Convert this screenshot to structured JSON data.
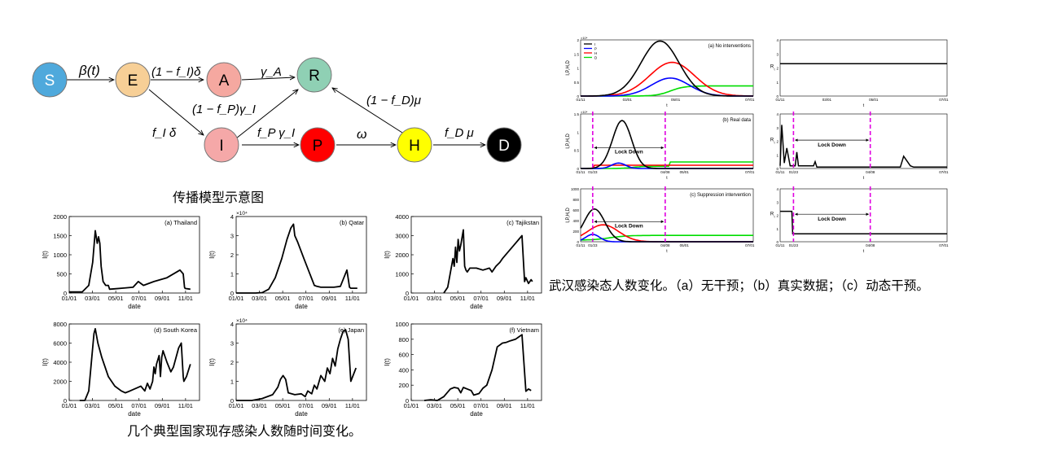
{
  "diagram": {
    "nodes": [
      {
        "id": "S",
        "label": "S",
        "color": "#4fa9dc",
        "text_color": "#ffffff"
      },
      {
        "id": "E",
        "label": "E",
        "color": "#f7cf96",
        "text_color": "#000000"
      },
      {
        "id": "A",
        "label": "A",
        "color": "#f5a8a0",
        "text_color": "#000000"
      },
      {
        "id": "R",
        "label": "R",
        "color": "#8fd0b4",
        "text_color": "#000000"
      },
      {
        "id": "I",
        "label": "I",
        "color": "#f5a8a8",
        "text_color": "#000000"
      },
      {
        "id": "P",
        "label": "P",
        "color": "#ff0000",
        "text_color": "#000000"
      },
      {
        "id": "H",
        "label": "H",
        "color": "#ffff00",
        "text_color": "#000000"
      },
      {
        "id": "D",
        "label": "D",
        "color": "#000000",
        "text_color": "#ffffff"
      }
    ],
    "edge_labels": {
      "s_e": "β(t)",
      "e_a": "(1 − f_I)δ",
      "a_r": "γ_A",
      "i_r": "(1 − f_P)γ_I",
      "e_i": "f_I δ",
      "i_p": "f_P γ_I",
      "p_h": "ω",
      "h_r": "(1 − f_D)μ",
      "h_d": "f_D μ"
    }
  },
  "captions": {
    "diagram": "传播模型示意图",
    "countries": "几个典型国家现存感染人数随时间变化。",
    "wuhan": "武汉感染态人数变化。（a）无干预；（b）真实数据；（c）动态干预。"
  },
  "country_axis_labels": {
    "x": "date",
    "y": "I(t)"
  },
  "wuhan_labels": {
    "y_left": "I,P,H,D",
    "y_right": "R",
    "y_right_sub": "t",
    "x": "t",
    "lockdown": "Lock Down",
    "legend": [
      "I",
      "P",
      "H",
      "D"
    ],
    "legend_colors": [
      "#000000",
      "#0000ff",
      "#ff0000",
      "#00dd00"
    ],
    "sci_top": "×10⁴",
    "sci_mid": "×10⁴"
  },
  "chart_data": [
    {
      "type": "line",
      "title": "(a) Thailand",
      "x_ticks": [
        "01/01",
        "03/01",
        "05/01",
        "07/01",
        "09/01",
        "11/01"
      ],
      "ylim": [
        0,
        2000
      ],
      "y_ticks": [
        "0",
        "500",
        "1000",
        "1500",
        "2000"
      ],
      "y_scale_label": "",
      "x": [
        0,
        0.07,
        0.1,
        0.15,
        0.18,
        0.2,
        0.215,
        0.225,
        0.235,
        0.245,
        0.26,
        0.28,
        0.3,
        0.31,
        0.35,
        0.42,
        0.49,
        0.53,
        0.57,
        0.65,
        0.75,
        0.85,
        0.875,
        0.885,
        0.89,
        0.93
      ],
      "y": [
        30,
        30,
        30,
        200,
        800,
        1630,
        1300,
        1470,
        1300,
        700,
        300,
        200,
        200,
        100,
        110,
        130,
        150,
        300,
        200,
        300,
        400,
        600,
        500,
        150,
        120,
        100
      ]
    },
    {
      "type": "line",
      "title": "(b) Qatar",
      "x_ticks": [
        "01/01",
        "03/01",
        "05/01",
        "07/01",
        "09/01",
        "11/01"
      ],
      "ylim": [
        0,
        40000
      ],
      "y_ticks": [
        "0",
        "1",
        "2",
        "3",
        "4"
      ],
      "y_scale_label": "×10⁴",
      "x": [
        0,
        0.15,
        0.2,
        0.25,
        0.3,
        0.35,
        0.39,
        0.42,
        0.44,
        0.45,
        0.47,
        0.52,
        0.6,
        0.62,
        0.65,
        0.75,
        0.8,
        0.85,
        0.87,
        0.88,
        0.93
      ],
      "y": [
        0,
        0,
        200,
        2000,
        8000,
        18000,
        28000,
        34000,
        36000,
        30000,
        27000,
        18000,
        4000,
        3500,
        3000,
        3000,
        3500,
        12000,
        3000,
        2500,
        2500
      ]
    },
    {
      "type": "line",
      "title": "(c) Tajikstan",
      "x_ticks": [
        "01/01",
        "03/01",
        "05/01",
        "07/01",
        "09/01",
        "11/01"
      ],
      "ylim": [
        0,
        4000
      ],
      "y_ticks": [
        "0",
        "1000",
        "2000",
        "3000",
        "4000"
      ],
      "y_scale_label": "",
      "x": [
        0.25,
        0.28,
        0.32,
        0.33,
        0.34,
        0.35,
        0.36,
        0.37,
        0.38,
        0.4,
        0.41,
        0.42,
        0.43,
        0.45,
        0.5,
        0.55,
        0.6,
        0.62,
        0.65,
        0.68,
        0.7,
        0.75,
        0.8,
        0.85,
        0.87,
        0.88,
        0.9,
        0.92,
        0.93
      ],
      "y": [
        0,
        300,
        1800,
        1400,
        2400,
        1600,
        2800,
        2200,
        2500,
        3300,
        1400,
        1200,
        1100,
        1300,
        1300,
        1200,
        1300,
        1100,
        1400,
        1600,
        1800,
        2200,
        2600,
        3000,
        600,
        800,
        500,
        700,
        600
      ]
    },
    {
      "type": "line",
      "title": "(d) South Korea",
      "x_ticks": [
        "01/01",
        "03/01",
        "05/01",
        "07/01",
        "09/01",
        "11/01"
      ],
      "ylim": [
        0,
        8000
      ],
      "y_ticks": [
        "0",
        "2000",
        "4000",
        "6000",
        "8000"
      ],
      "y_scale_label": "",
      "x": [
        0.08,
        0.12,
        0.15,
        0.17,
        0.19,
        0.2,
        0.22,
        0.25,
        0.3,
        0.35,
        0.4,
        0.43,
        0.45,
        0.5,
        0.55,
        0.58,
        0.6,
        0.62,
        0.64,
        0.65,
        0.66,
        0.67,
        0.69,
        0.7,
        0.71,
        0.72,
        0.75,
        0.78,
        0.8,
        0.82,
        0.84,
        0.86,
        0.875,
        0.88,
        0.9,
        0.93
      ],
      "y": [
        0,
        0,
        1000,
        4000,
        7000,
        7500,
        6000,
        4500,
        2500,
        1500,
        1000,
        800,
        900,
        1200,
        1500,
        1000,
        1800,
        1200,
        2000,
        3500,
        2800,
        3800,
        4700,
        2500,
        4500,
        5200,
        4000,
        3000,
        3500,
        4500,
        5500,
        6000,
        2500,
        2000,
        2500,
        3800
      ]
    },
    {
      "type": "line",
      "title": "(e) Japan",
      "x_ticks": [
        "01/01",
        "03/01",
        "05/01",
        "07/01",
        "09/01",
        "11/01"
      ],
      "ylim": [
        0,
        40000
      ],
      "y_ticks": [
        "0",
        "1",
        "2",
        "3",
        "4"
      ],
      "y_scale_label": "×10⁴",
      "x": [
        0,
        0.12,
        0.2,
        0.28,
        0.32,
        0.34,
        0.36,
        0.38,
        0.4,
        0.45,
        0.5,
        0.53,
        0.55,
        0.58,
        0.6,
        0.62,
        0.65,
        0.68,
        0.7,
        0.72,
        0.74,
        0.76,
        0.78,
        0.8,
        0.82,
        0.84,
        0.86,
        0.88,
        0.92
      ],
      "y": [
        0,
        0,
        1000,
        3000,
        7000,
        11000,
        13000,
        11000,
        4000,
        3000,
        3500,
        2000,
        5000,
        3500,
        8000,
        6000,
        13000,
        10000,
        17000,
        14000,
        22000,
        18000,
        27000,
        32000,
        36000,
        37000,
        32000,
        10000,
        17000
      ]
    },
    {
      "type": "line",
      "title": "(f) Vietnam",
      "x_ticks": [
        "01/01",
        "03/01",
        "05/01",
        "07/01",
        "09/01",
        "11/01"
      ],
      "ylim": [
        0,
        1000
      ],
      "y_ticks": [
        "0",
        "200",
        "400",
        "600",
        "800",
        "1000"
      ],
      "y_scale_label": "",
      "x": [
        0.1,
        0.15,
        0.2,
        0.25,
        0.3,
        0.33,
        0.36,
        0.38,
        0.4,
        0.43,
        0.46,
        0.48,
        0.52,
        0.55,
        0.58,
        0.62,
        0.66,
        0.7,
        0.73,
        0.76,
        0.8,
        0.85,
        0.88,
        0.9,
        0.92
      ],
      "y": [
        0,
        10,
        0,
        50,
        150,
        170,
        160,
        100,
        170,
        150,
        130,
        70,
        90,
        160,
        200,
        400,
        700,
        750,
        760,
        780,
        800,
        860,
        120,
        150,
        130
      ]
    }
  ],
  "wuhan_charts": [
    {
      "title": "(a) No interventions",
      "x_ticks": [
        "01/11",
        "03/01",
        "05/01",
        "07/01"
      ],
      "y_ticks": [
        "0",
        "0.5",
        "1",
        "1.5",
        "2"
      ]
    },
    {
      "title": "(b) Real data",
      "x_ticks": [
        "01/11",
        "01/23",
        "04/08",
        "05/01",
        "07/01"
      ],
      "y_ticks": [
        "0",
        "0.5",
        "1",
        "1.5"
      ]
    },
    {
      "title": "(c) Suppression intervention",
      "x_ticks": [
        "01/11",
        "01/23",
        "04/08",
        "05/01",
        "07/01"
      ],
      "y_ticks": [
        "0",
        "200",
        "400",
        "600",
        "800",
        "1000"
      ]
    }
  ],
  "wuhan_r_charts": [
    {
      "x_ticks": [
        "01/11",
        "03/01",
        "05/01",
        "07/01"
      ],
      "y_ticks": [
        "0",
        "1",
        "2",
        "3",
        "4"
      ]
    },
    {
      "x_ticks": [
        "01/11",
        "01/23",
        "04/08",
        "07/01"
      ],
      "y_ticks": [
        "0",
        "1",
        "2",
        "3",
        "4"
      ]
    },
    {
      "x_ticks": [
        "01/11",
        "01/23",
        "04/08",
        "07/01"
      ],
      "y_ticks": [
        "0",
        "1",
        "2",
        "3",
        "4"
      ]
    }
  ]
}
